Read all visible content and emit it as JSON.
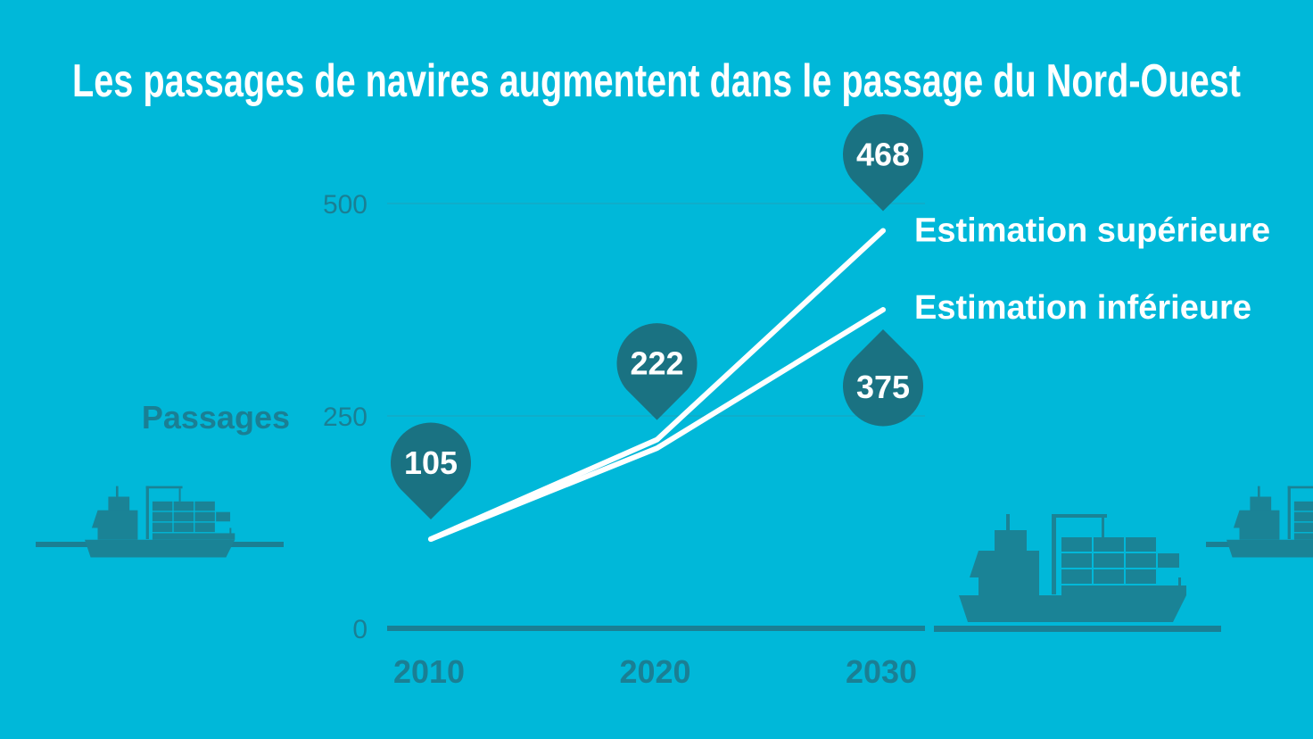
{
  "title": "Les passages de navires augmentent dans le passage du Nord-Ouest",
  "colors": {
    "background": "#00b8d9",
    "line": "#ffffff",
    "pin": "#1a7282",
    "axis_text": "#1a7f94",
    "ship": "#1a8396"
  },
  "icons": [
    "cargo-ship-icon"
  ],
  "chart_data": {
    "type": "line",
    "title": "Les passages de navires augmentent dans le passage du Nord-Ouest",
    "ylabel": "Passages",
    "xlabel": "",
    "x": [
      2010,
      2020,
      2030
    ],
    "x_tick_labels": [
      "2010",
      "2020",
      "2030"
    ],
    "y_ticks": [
      0,
      250,
      500
    ],
    "y_tick_labels": [
      "0",
      "250",
      "500"
    ],
    "ylim": [
      0,
      500
    ],
    "grid": true,
    "series": [
      {
        "name": "Estimation supérieure",
        "values": [
          105,
          222,
          468
        ]
      },
      {
        "name": "Estimation inférieure",
        "values": [
          105,
          212,
          375
        ]
      }
    ],
    "annotations": [
      {
        "x": 2010,
        "y": 105,
        "label": "105",
        "side": "above"
      },
      {
        "x": 2020,
        "y": 222,
        "label": "222",
        "side": "above"
      },
      {
        "x": 2030,
        "y": 468,
        "label": "468",
        "side": "above"
      },
      {
        "x": 2030,
        "y": 375,
        "label": "375",
        "side": "below"
      }
    ]
  }
}
